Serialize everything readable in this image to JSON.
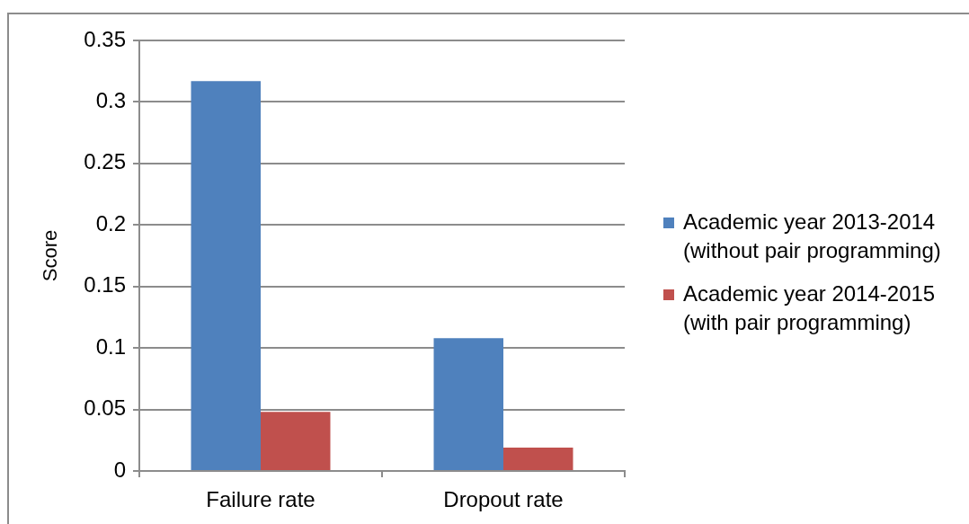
{
  "chart_data": {
    "type": "bar",
    "ylabel": "Score",
    "categories": [
      "Failure rate",
      "Dropout rate"
    ],
    "series": [
      {
        "name": "Academic year 2013-2014 (without pair programming)",
        "color": "#4f81bd",
        "values": [
          0.317,
          0.108
        ]
      },
      {
        "name": "Academic year 2014-2015 (with pair programming)",
        "color": "#c0504d",
        "values": [
          0.048,
          0.019
        ]
      }
    ],
    "ylim": [
      0,
      0.35
    ],
    "yticks": [
      0,
      0.05,
      0.1,
      0.15,
      0.2,
      0.25,
      0.3,
      0.35
    ],
    "grid": "y",
    "legend": "right"
  }
}
